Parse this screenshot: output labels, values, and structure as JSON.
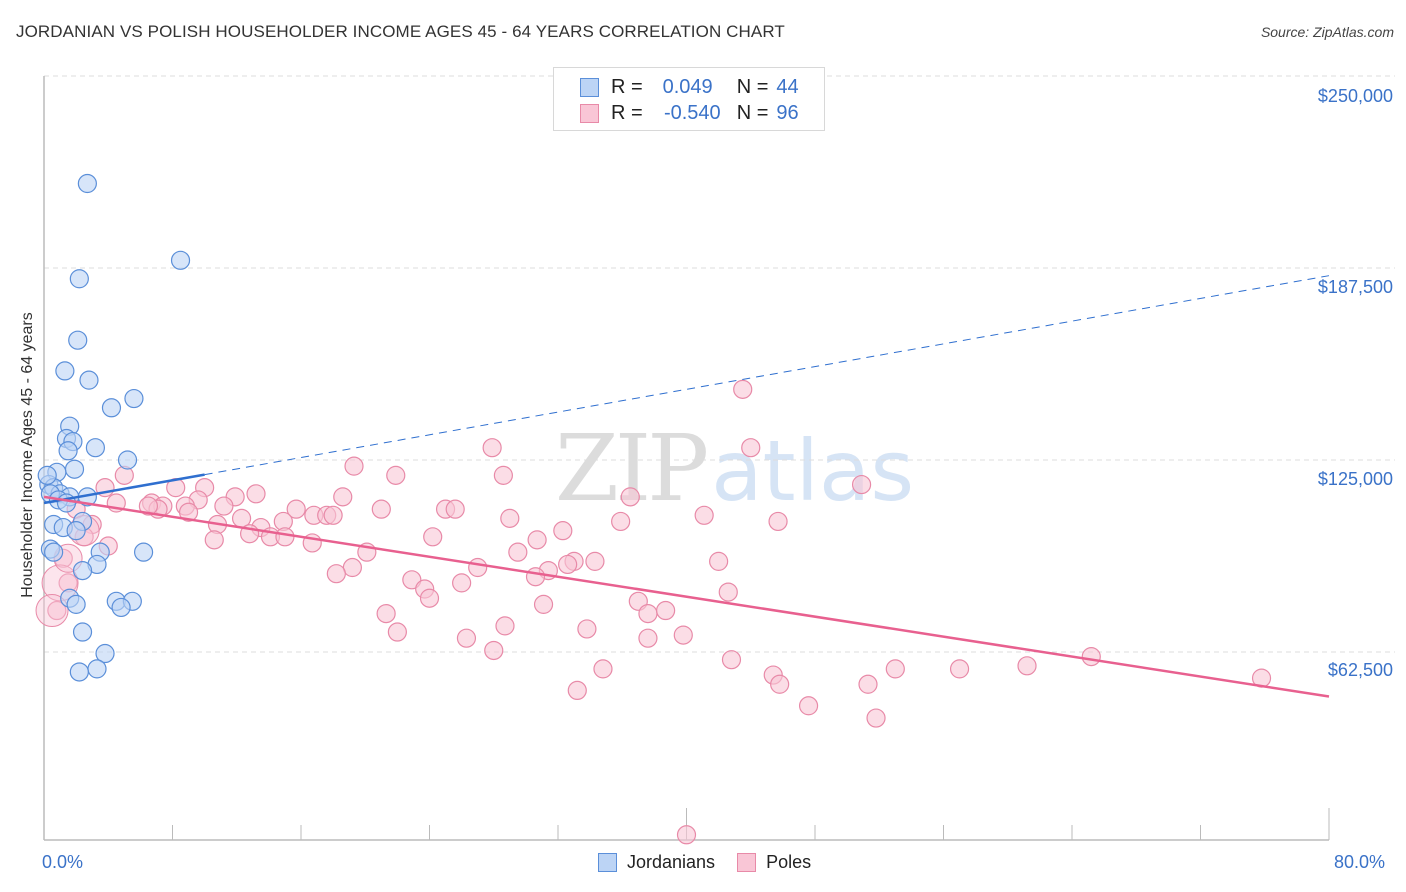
{
  "header": {
    "title": "JORDANIAN VS POLISH HOUSEHOLDER INCOME AGES 45 - 64 YEARS CORRELATION CHART",
    "source": "Source: ZipAtlas.com"
  },
  "colors": {
    "jordanians_fill": "#bcd4f5",
    "jordanians_stroke": "#5b8fd9",
    "jordanians_line": "#2f6fcf",
    "poles_fill": "#f9c6d6",
    "poles_stroke": "#e88aa8",
    "poles_line": "#e8608f",
    "axis_text": "#3a72c8",
    "grid": "#dddddd"
  },
  "legend_top": {
    "rows": [
      {
        "r_label": "R =",
        "r_value": "0.049",
        "n_label": "N =",
        "n_value": "44"
      },
      {
        "r_label": "R =",
        "r_value": "-0.540",
        "n_label": "N =",
        "n_value": "96"
      }
    ]
  },
  "legend_bottom": {
    "items": [
      {
        "label": "Jordanians"
      },
      {
        "label": "Poles"
      }
    ]
  },
  "watermark": {
    "zip": "ZIP",
    "atlas": "atlas"
  },
  "axes": {
    "ylabel": "Householder Income Ages 45 - 64 years",
    "yticks": [
      "$250,000",
      "$187,500",
      "$125,000",
      "$62,500"
    ],
    "xticks": [
      "0.0%",
      "80.0%"
    ]
  },
  "chart_data": {
    "type": "scatter",
    "title": "JORDANIAN VS POLISH HOUSEHOLDER INCOME AGES 45 - 64 YEARS CORRELATION CHART",
    "xlabel": "",
    "ylabel": "Householder Income Ages 45 - 64 years",
    "xlim": [
      0,
      80
    ],
    "ylim": [
      0,
      260000
    ],
    "x_unit": "%",
    "ytick_values": [
      62500,
      125000,
      187500,
      250000
    ],
    "xtick_labels": [
      "0.0%",
      "80.0%"
    ],
    "grid": true,
    "legend_position": "bottom-center",
    "series": [
      {
        "name": "Jordanians",
        "R": 0.049,
        "N": 44,
        "trend": {
          "x0": 0,
          "y0": 111000,
          "x1": 80,
          "y1": 185000,
          "solid_until_x": 10
        },
        "points": [
          [
            2.7,
            215000
          ],
          [
            8.5,
            190000
          ],
          [
            2.2,
            184000
          ],
          [
            2.1,
            164000
          ],
          [
            1.3,
            154000
          ],
          [
            2.8,
            151000
          ],
          [
            4.2,
            142000
          ],
          [
            5.6,
            145000
          ],
          [
            1.6,
            136000
          ],
          [
            1.4,
            132000
          ],
          [
            1.8,
            131000
          ],
          [
            3.2,
            129000
          ],
          [
            1.5,
            128000
          ],
          [
            5.2,
            125000
          ],
          [
            1.9,
            122000
          ],
          [
            0.8,
            121000
          ],
          [
            0.3,
            117000
          ],
          [
            0.6,
            116000
          ],
          [
            1.0,
            114000
          ],
          [
            0.4,
            114000
          ],
          [
            1.6,
            113000
          ],
          [
            2.7,
            113000
          ],
          [
            0.9,
            112000
          ],
          [
            1.4,
            111000
          ],
          [
            0.6,
            104000
          ],
          [
            2.4,
            105000
          ],
          [
            1.2,
            103000
          ],
          [
            2.0,
            102000
          ],
          [
            0.4,
            96000
          ],
          [
            0.6,
            95000
          ],
          [
            3.5,
            95000
          ],
          [
            6.2,
            95000
          ],
          [
            3.3,
            91000
          ],
          [
            2.4,
            89000
          ],
          [
            1.6,
            80000
          ],
          [
            2.0,
            78000
          ],
          [
            4.5,
            79000
          ],
          [
            5.5,
            79000
          ],
          [
            4.8,
            77000
          ],
          [
            2.4,
            69000
          ],
          [
            3.8,
            62000
          ],
          [
            3.3,
            57000
          ],
          [
            2.2,
            56000
          ],
          [
            0.2,
            120000
          ]
        ]
      },
      {
        "name": "Poles",
        "R": -0.54,
        "N": 96,
        "trend": {
          "x0": 0,
          "y0": 113000,
          "x1": 80,
          "y1": 48000
        },
        "points": [
          [
            43.5,
            148000
          ],
          [
            27.9,
            129000
          ],
          [
            44.0,
            129000
          ],
          [
            5.0,
            120000
          ],
          [
            19.3,
            123000
          ],
          [
            21.9,
            120000
          ],
          [
            28.6,
            120000
          ],
          [
            50.9,
            117000
          ],
          [
            3.8,
            116000
          ],
          [
            8.2,
            116000
          ],
          [
            10.0,
            116000
          ],
          [
            36.5,
            113000
          ],
          [
            13.2,
            114000
          ],
          [
            11.9,
            113000
          ],
          [
            18.6,
            113000
          ],
          [
            9.6,
            112000
          ],
          [
            4.5,
            111000
          ],
          [
            6.7,
            111000
          ],
          [
            7.4,
            110000
          ],
          [
            8.8,
            110000
          ],
          [
            7.1,
            109000
          ],
          [
            11.2,
            110000
          ],
          [
            15.7,
            109000
          ],
          [
            21.0,
            109000
          ],
          [
            25.0,
            109000
          ],
          [
            25.6,
            109000
          ],
          [
            2.0,
            109000
          ],
          [
            41.1,
            107000
          ],
          [
            16.8,
            107000
          ],
          [
            17.6,
            107000
          ],
          [
            18.0,
            107000
          ],
          [
            29.0,
            106000
          ],
          [
            35.9,
            105000
          ],
          [
            14.9,
            105000
          ],
          [
            12.3,
            106000
          ],
          [
            45.7,
            105000
          ],
          [
            10.8,
            104000
          ],
          [
            3.0,
            104000
          ],
          [
            13.5,
            103000
          ],
          [
            32.3,
            102000
          ],
          [
            14.1,
            100000
          ],
          [
            15.0,
            100000
          ],
          [
            24.2,
            100000
          ],
          [
            30.7,
            99000
          ],
          [
            10.6,
            99000
          ],
          [
            16.7,
            98000
          ],
          [
            20.1,
            95000
          ],
          [
            29.5,
            95000
          ],
          [
            33.0,
            92000
          ],
          [
            34.3,
            92000
          ],
          [
            42.0,
            92000
          ],
          [
            1.2,
            93000
          ],
          [
            19.2,
            90000
          ],
          [
            27.0,
            90000
          ],
          [
            31.4,
            89000
          ],
          [
            32.6,
            91000
          ],
          [
            18.2,
            88000
          ],
          [
            30.6,
            87000
          ],
          [
            22.9,
            86000
          ],
          [
            26.0,
            85000
          ],
          [
            23.7,
            83000
          ],
          [
            42.6,
            82000
          ],
          [
            37.0,
            79000
          ],
          [
            24.0,
            80000
          ],
          [
            1.5,
            85000
          ],
          [
            31.1,
            78000
          ],
          [
            21.3,
            75000
          ],
          [
            37.6,
            75000
          ],
          [
            38.7,
            76000
          ],
          [
            28.7,
            71000
          ],
          [
            33.8,
            70000
          ],
          [
            22.0,
            69000
          ],
          [
            39.8,
            68000
          ],
          [
            26.3,
            67000
          ],
          [
            28.0,
            63000
          ],
          [
            37.6,
            67000
          ],
          [
            42.8,
            60000
          ],
          [
            34.8,
            57000
          ],
          [
            57.0,
            57000
          ],
          [
            53.0,
            57000
          ],
          [
            61.2,
            58000
          ],
          [
            65.2,
            61000
          ],
          [
            45.4,
            55000
          ],
          [
            45.8,
            52000
          ],
          [
            51.3,
            52000
          ],
          [
            75.8,
            54000
          ],
          [
            33.2,
            50000
          ],
          [
            47.6,
            45000
          ],
          [
            51.8,
            41000
          ],
          [
            40.0,
            3000
          ],
          [
            0.8,
            76000
          ],
          [
            2.5,
            100000
          ],
          [
            4.0,
            97000
          ],
          [
            6.5,
            110000
          ],
          [
            9.0,
            108000
          ],
          [
            12.8,
            101000
          ]
        ]
      }
    ]
  }
}
